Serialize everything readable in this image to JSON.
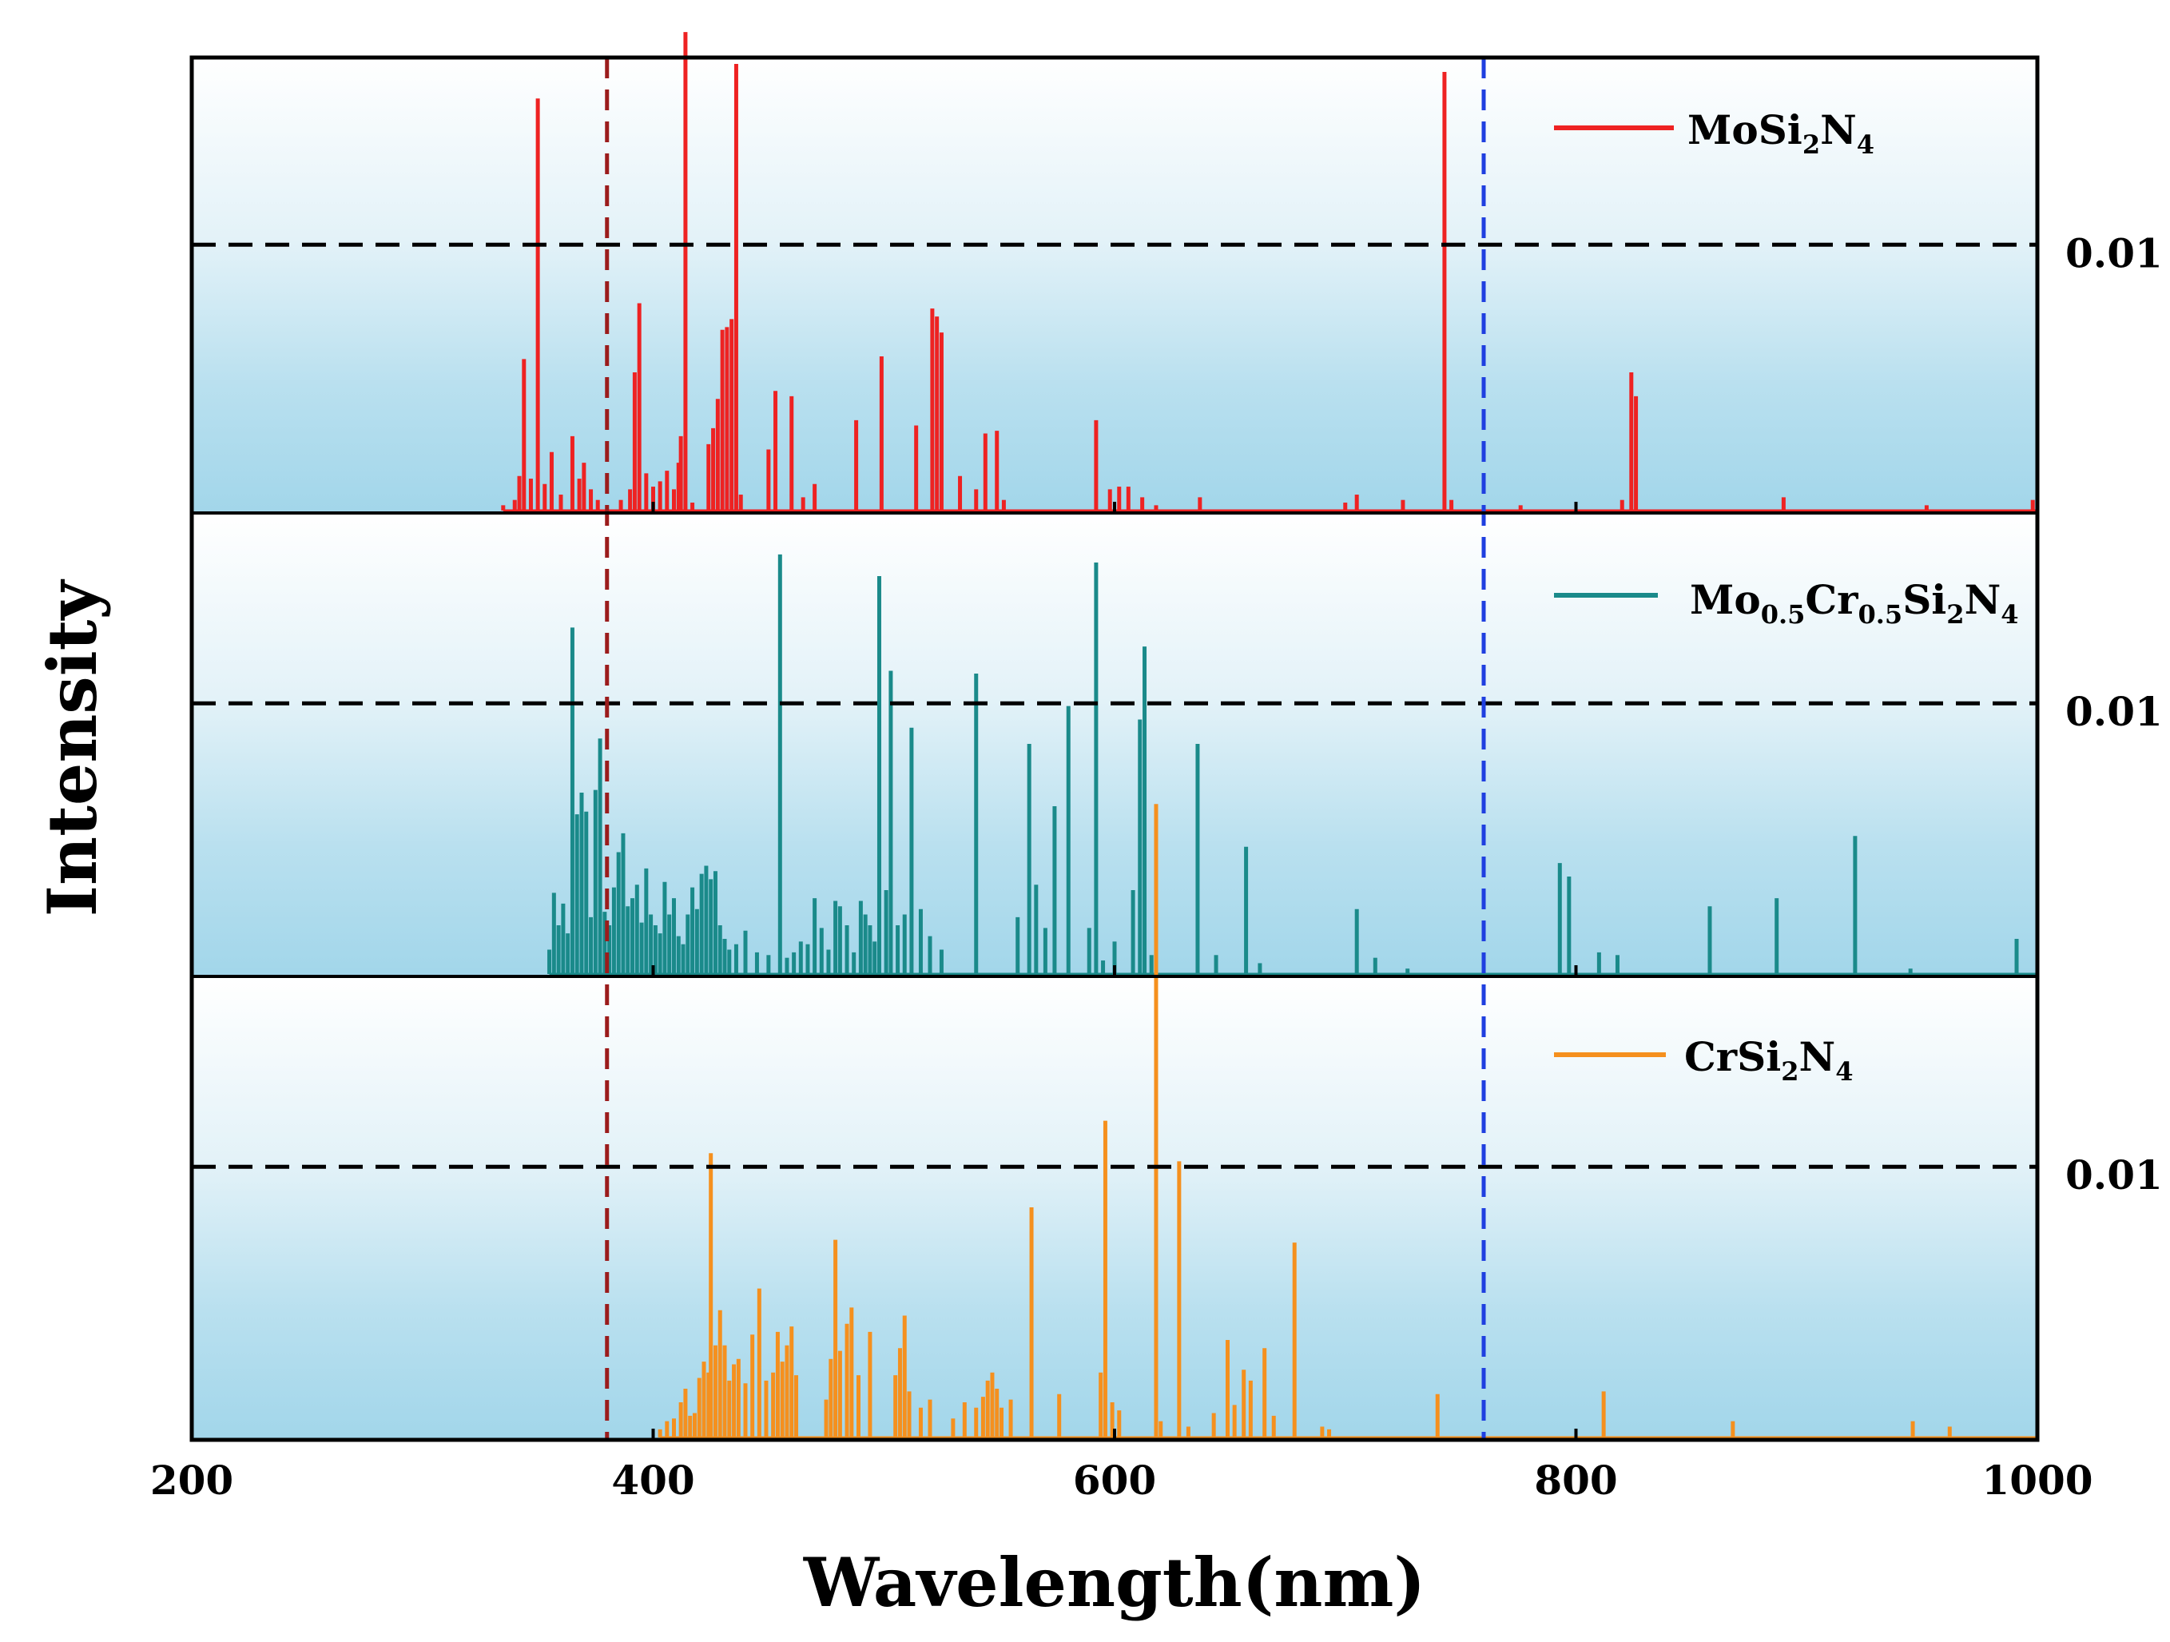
{
  "chart_data": {
    "type": "bar",
    "subtype": "stacked-panel stick spectrum",
    "xlabel": "Wavelength(nm)",
    "ylabel": "Intensity",
    "xlim": [
      200,
      1000
    ],
    "xticks": [
      "200",
      "400",
      "600",
      "800",
      "1000"
    ],
    "reference_level": {
      "value": 0.01,
      "label": "0.01"
    },
    "vlines": [
      {
        "x": 380,
        "color": "#9b1c1c",
        "style": "dashed"
      },
      {
        "x": 760,
        "color": "#1f3fe0",
        "style": "dashed"
      }
    ],
    "panels": [
      {
        "name": "MoSi2N4",
        "legend_main": "MoSi",
        "legend_sub1": "2",
        "legend_mid": "N",
        "legend_sub2": "4",
        "color": "#ee2222",
        "ylim": [
          0,
          0.0165
        ],
        "peaks": [
          [
            335,
            0.0002
          ],
          [
            340,
            0.0004
          ],
          [
            342,
            0.0013
          ],
          [
            344,
            0.0057
          ],
          [
            347,
            0.0012
          ],
          [
            350,
            0.0155
          ],
          [
            353,
            0.001
          ],
          [
            356,
            0.0022
          ],
          [
            360,
            0.0006
          ],
          [
            365,
            0.0028
          ],
          [
            368,
            0.0012
          ],
          [
            370,
            0.0018
          ],
          [
            373,
            0.0008
          ],
          [
            376,
            0.0004
          ],
          [
            386,
            0.0004
          ],
          [
            390,
            0.0008
          ],
          [
            392,
            0.0052
          ],
          [
            394,
            0.0078
          ],
          [
            397,
            0.0014
          ],
          [
            400,
            0.0009
          ],
          [
            403,
            0.0011
          ],
          [
            406,
            0.0015
          ],
          [
            409,
            0.0008
          ],
          [
            411,
            0.0018
          ],
          [
            412,
            0.0028
          ],
          [
            414,
            0.018
          ],
          [
            417,
            0.0003
          ],
          [
            424,
            0.0025
          ],
          [
            426,
            0.0031
          ],
          [
            428,
            0.0042
          ],
          [
            430,
            0.0068
          ],
          [
            432,
            0.0069
          ],
          [
            434,
            0.0072
          ],
          [
            436,
            0.0168
          ],
          [
            438,
            0.0006
          ],
          [
            450,
            0.0023
          ],
          [
            453,
            0.0045
          ],
          [
            460,
            0.0043
          ],
          [
            465,
            0.0005
          ],
          [
            470,
            0.001
          ],
          [
            488,
            0.0034
          ],
          [
            499,
            0.0058
          ],
          [
            514,
            0.0032
          ],
          [
            521,
            0.0076
          ],
          [
            523,
            0.0073
          ],
          [
            525,
            0.0067
          ],
          [
            533,
            0.0013
          ],
          [
            540,
            0.0008
          ],
          [
            544,
            0.0029
          ],
          [
            549,
            0.003
          ],
          [
            552,
            0.0004
          ],
          [
            592,
            0.0034
          ],
          [
            598,
            0.0008
          ],
          [
            602,
            0.0009
          ],
          [
            606,
            0.0009
          ],
          [
            612,
            0.0005
          ],
          [
            618,
            0.0002
          ],
          [
            637,
            0.0005
          ],
          [
            700,
            0.0003
          ],
          [
            705,
            0.0006
          ],
          [
            725,
            0.0004
          ],
          [
            743,
            0.0165
          ],
          [
            746,
            0.0004
          ],
          [
            776,
            0.0002
          ],
          [
            820,
            0.0004
          ],
          [
            824,
            0.0052
          ],
          [
            826,
            0.0043
          ],
          [
            890,
            0.0005
          ],
          [
            952,
            0.0002
          ],
          [
            998,
            0.0004
          ]
        ]
      },
      {
        "name": "Mo0.5Cr0.5Si2N4",
        "legend_main": "Mo",
        "legend_sub1": "0.5",
        "legend_mid": "Cr",
        "legend_sub2": "0.5",
        "legend_tail_main": "Si",
        "legend_sub3": "2",
        "legend_tail_main2": "N",
        "legend_sub4": "4",
        "color": "#1a8a8a",
        "ylim": [
          0,
          0.0165
        ],
        "peaks": [
          [
            355,
            0.0009
          ],
          [
            357,
            0.003
          ],
          [
            359,
            0.0018
          ],
          [
            361,
            0.0026
          ],
          [
            363,
            0.0015
          ],
          [
            365,
            0.0128
          ],
          [
            367,
            0.0059
          ],
          [
            369,
            0.0067
          ],
          [
            371,
            0.006
          ],
          [
            373,
            0.0021
          ],
          [
            375,
            0.0068
          ],
          [
            377,
            0.0087
          ],
          [
            379,
            0.0023
          ],
          [
            381,
            0.0018
          ],
          [
            383,
            0.0032
          ],
          [
            385,
            0.0045
          ],
          [
            387,
            0.0052
          ],
          [
            389,
            0.0025
          ],
          [
            391,
            0.0028
          ],
          [
            393,
            0.0033
          ],
          [
            395,
            0.0019
          ],
          [
            397,
            0.0039
          ],
          [
            399,
            0.0022
          ],
          [
            401,
            0.0018
          ],
          [
            403,
            0.0015
          ],
          [
            405,
            0.0034
          ],
          [
            407,
            0.0022
          ],
          [
            409,
            0.0028
          ],
          [
            411,
            0.0014
          ],
          [
            413,
            0.0011
          ],
          [
            415,
            0.0022
          ],
          [
            417,
            0.0032
          ],
          [
            419,
            0.0024
          ],
          [
            421,
            0.0037
          ],
          [
            423,
            0.004
          ],
          [
            425,
            0.0035
          ],
          [
            427,
            0.0038
          ],
          [
            429,
            0.0018
          ],
          [
            431,
            0.0013
          ],
          [
            433,
            0.0009
          ],
          [
            436,
            0.0011
          ],
          [
            440,
            0.0016
          ],
          [
            445,
            0.0008
          ],
          [
            450,
            0.0007
          ],
          [
            455,
            0.0155
          ],
          [
            458,
            0.0006
          ],
          [
            461,
            0.0008
          ],
          [
            464,
            0.0012
          ],
          [
            467,
            0.0011
          ],
          [
            470,
            0.0028
          ],
          [
            473,
            0.0017
          ],
          [
            476,
            0.0009
          ],
          [
            479,
            0.0027
          ],
          [
            481,
            0.0025
          ],
          [
            484,
            0.0018
          ],
          [
            487,
            0.0008
          ],
          [
            490,
            0.0027
          ],
          [
            492,
            0.0022
          ],
          [
            494,
            0.0018
          ],
          [
            496,
            0.0012
          ],
          [
            498,
            0.0147
          ],
          [
            501,
            0.0031
          ],
          [
            503,
            0.0112
          ],
          [
            506,
            0.0018
          ],
          [
            509,
            0.0022
          ],
          [
            512,
            0.0091
          ],
          [
            516,
            0.0024
          ],
          [
            520,
            0.0014
          ],
          [
            525,
            0.0009
          ],
          [
            540,
            0.0111
          ],
          [
            558,
            0.0021
          ],
          [
            563,
            0.0085
          ],
          [
            566,
            0.0033
          ],
          [
            570,
            0.0017
          ],
          [
            574,
            0.0062
          ],
          [
            580,
            0.0099
          ],
          [
            589,
            0.0017
          ],
          [
            592,
            0.0152
          ],
          [
            595,
            0.0005
          ],
          [
            600,
            0.0012
          ],
          [
            608,
            0.0031
          ],
          [
            611,
            0.0094
          ],
          [
            613,
            0.0121
          ],
          [
            616,
            0.0007
          ],
          [
            636,
            0.0085
          ],
          [
            644,
            0.0007
          ],
          [
            657,
            0.0047
          ],
          [
            663,
            0.0004
          ],
          [
            705,
            0.0024
          ],
          [
            713,
            0.0006
          ],
          [
            727,
            0.0002
          ],
          [
            793,
            0.0041
          ],
          [
            797,
            0.0036
          ],
          [
            810,
            0.0008
          ],
          [
            818,
            0.0007
          ],
          [
            858,
            0.0025
          ],
          [
            887,
            0.0028
          ],
          [
            921,
            0.0051
          ],
          [
            945,
            0.0002
          ],
          [
            991,
            0.0013
          ]
        ]
      },
      {
        "name": "CrSi2N4",
        "legend_main": "CrSi",
        "legend_sub1": "2",
        "legend_mid": "N",
        "legend_sub2": "4",
        "color": "#f5901e",
        "ylim": [
          0,
          0.0165
        ],
        "peaks": [
          [
            403,
            0.0003
          ],
          [
            406,
            0.0006
          ],
          [
            409,
            0.0007
          ],
          [
            412,
            0.0013
          ],
          [
            414,
            0.0018
          ],
          [
            416,
            0.0008
          ],
          [
            418,
            0.0009
          ],
          [
            420,
            0.0022
          ],
          [
            422,
            0.0028
          ],
          [
            424,
            0.0024
          ],
          [
            425,
            0.0105
          ],
          [
            427,
            0.0034
          ],
          [
            429,
            0.0047
          ],
          [
            431,
            0.0034
          ],
          [
            433,
            0.0021
          ],
          [
            435,
            0.0027
          ],
          [
            437,
            0.0029
          ],
          [
            440,
            0.002
          ],
          [
            443,
            0.0038
          ],
          [
            446,
            0.0055
          ],
          [
            449,
            0.0021
          ],
          [
            452,
            0.0024
          ],
          [
            454,
            0.0039
          ],
          [
            456,
            0.0028
          ],
          [
            458,
            0.0034
          ],
          [
            460,
            0.0041
          ],
          [
            462,
            0.0023
          ],
          [
            475,
            0.0014
          ],
          [
            477,
            0.0029
          ],
          [
            479,
            0.0073
          ],
          [
            481,
            0.0032
          ],
          [
            484,
            0.0042
          ],
          [
            486,
            0.0048
          ],
          [
            489,
            0.0023
          ],
          [
            494,
            0.0039
          ],
          [
            505,
            0.0023
          ],
          [
            507,
            0.0033
          ],
          [
            509,
            0.0045
          ],
          [
            511,
            0.0017
          ],
          [
            516,
            0.0011
          ],
          [
            520,
            0.0014
          ],
          [
            530,
            0.0007
          ],
          [
            535,
            0.0013
          ],
          [
            540,
            0.0011
          ],
          [
            543,
            0.0015
          ],
          [
            545,
            0.0021
          ],
          [
            547,
            0.0024
          ],
          [
            549,
            0.0018
          ],
          [
            551,
            0.0011
          ],
          [
            555,
            0.0014
          ],
          [
            564,
            0.0085
          ],
          [
            576,
            0.0016
          ],
          [
            594,
            0.0024
          ],
          [
            596,
            0.0117
          ],
          [
            599,
            0.0013
          ],
          [
            602,
            0.001
          ],
          [
            618,
            0.0234
          ],
          [
            620,
            0.0006
          ],
          [
            628,
            0.0102
          ],
          [
            632,
            0.0004
          ],
          [
            643,
            0.0009
          ],
          [
            649,
            0.0036
          ],
          [
            652,
            0.0012
          ],
          [
            656,
            0.0025
          ],
          [
            659,
            0.0021
          ],
          [
            665,
            0.0033
          ],
          [
            669,
            0.0008
          ],
          [
            678,
            0.0072
          ],
          [
            690,
            0.0004
          ],
          [
            693,
            0.0003
          ],
          [
            740,
            0.0016
          ],
          [
            812,
            0.0017
          ],
          [
            868,
            0.0006
          ],
          [
            946,
            0.0006
          ],
          [
            962,
            0.0004
          ]
        ]
      }
    ]
  }
}
